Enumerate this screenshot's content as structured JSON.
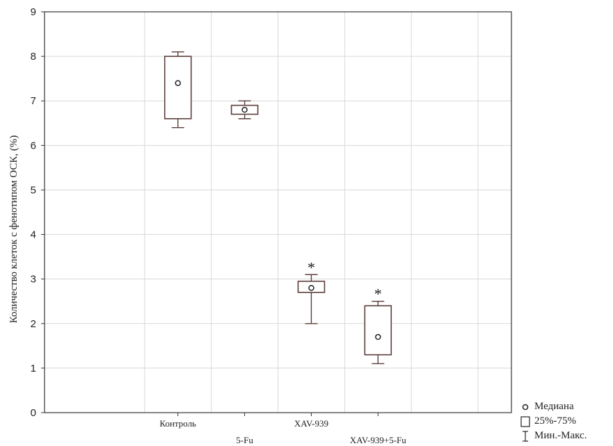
{
  "chart_data": {
    "type": "boxplot",
    "ylabel": "Количество клеток с фенотипом ОСК, (%)",
    "xlabel": "",
    "ylim": [
      0,
      9
    ],
    "yticks": [
      0,
      1,
      2,
      3,
      4,
      5,
      6,
      7,
      8,
      9
    ],
    "grid": true,
    "categories": [
      "Контроль",
      "5-Fu",
      "XAV-939",
      "XAV-939+5-Fu"
    ],
    "series": [
      {
        "category": "Контроль",
        "min": 6.4,
        "q1": 6.6,
        "median": 7.4,
        "q3": 8.0,
        "max": 8.1,
        "significance": ""
      },
      {
        "category": "5-Fu",
        "min": 6.6,
        "q1": 6.7,
        "median": 6.8,
        "q3": 6.9,
        "max": 7.0,
        "significance": ""
      },
      {
        "category": "XAV-939",
        "min": 2.0,
        "q1": 2.7,
        "median": 2.8,
        "q3": 2.95,
        "max": 3.1,
        "significance": "*"
      },
      {
        "category": "XAV-939+5-Fu",
        "min": 1.1,
        "q1": 1.3,
        "median": 1.7,
        "q3": 2.4,
        "max": 2.5,
        "significance": "*"
      }
    ],
    "legend": {
      "position": "bottom-right",
      "items": [
        {
          "symbol": "circle",
          "label": "Медиана"
        },
        {
          "symbol": "box",
          "label": "25%-75%"
        },
        {
          "symbol": "whisker",
          "label": "Мин.-Макс."
        }
      ]
    },
    "colors": {
      "box": "#5a3e3a",
      "grid": "#d8d8d8",
      "axis": "#333333"
    }
  }
}
